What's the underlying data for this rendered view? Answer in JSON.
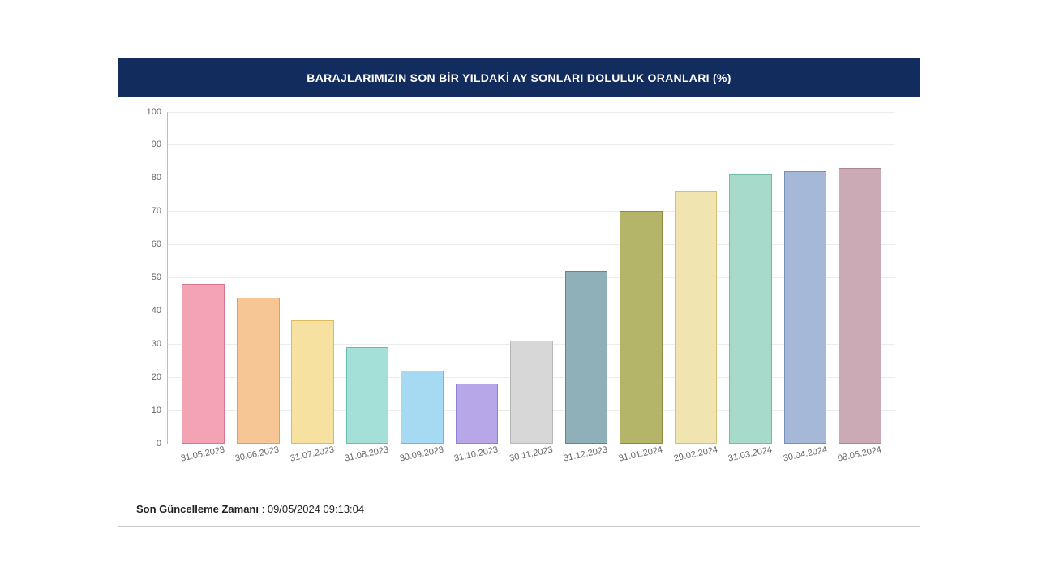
{
  "chart": {
    "type": "bar",
    "title": "BARAJLARIMIZIN SON BİR YILDAKİ AY SONLARI DOLULUK ORANLARI (%)",
    "header_bg": "#132c5e",
    "header_text_color": "#ffffff",
    "header_fontsize": 14,
    "background_color": "#ffffff",
    "grid_color": "#ececec",
    "axis_color": "#bcbcbc",
    "tick_label_color": "#666666",
    "tick_fontsize": 11,
    "ylim": [
      0,
      100
    ],
    "ytick_step": 10,
    "bar_width_ratio": 0.78,
    "xlabel_rotation_deg": -12,
    "categories": [
      "31.05.2023",
      "30.06.2023",
      "31.07.2023",
      "31.08.2023",
      "30.09.2023",
      "31.10.2023",
      "30.11.2023",
      "31.12.2023",
      "31.01.2024",
      "29.02.2024",
      "31.03.2024",
      "30.04.2024",
      "08.05.2024"
    ],
    "values": [
      48,
      44,
      37,
      29,
      22,
      18,
      31,
      52,
      70,
      76,
      81,
      82,
      83
    ],
    "bar_fill_colors": [
      "#f4a3b5",
      "#f6c695",
      "#f6e1a1",
      "#a4e0d8",
      "#a6d9f2",
      "#b7a6e8",
      "#d7d7d7",
      "#8fb0b8",
      "#b5b56a",
      "#f0e5b1",
      "#a7dacb",
      "#a5b8d8",
      "#cbaab5"
    ],
    "bar_border_colors": [
      "#d6768f",
      "#dca060",
      "#d8bc5f",
      "#68bfb3",
      "#6bb8de",
      "#8f7ed1",
      "#b8b8b8",
      "#5f8791",
      "#8d8d3f",
      "#d2c276",
      "#72bba6",
      "#7690be",
      "#ac8492"
    ]
  },
  "footer": {
    "label": "Son Güncelleme Zamanı",
    "separator": " : ",
    "value": "09/05/2024 09:13:04",
    "fontsize": 13,
    "color": "#222222"
  }
}
